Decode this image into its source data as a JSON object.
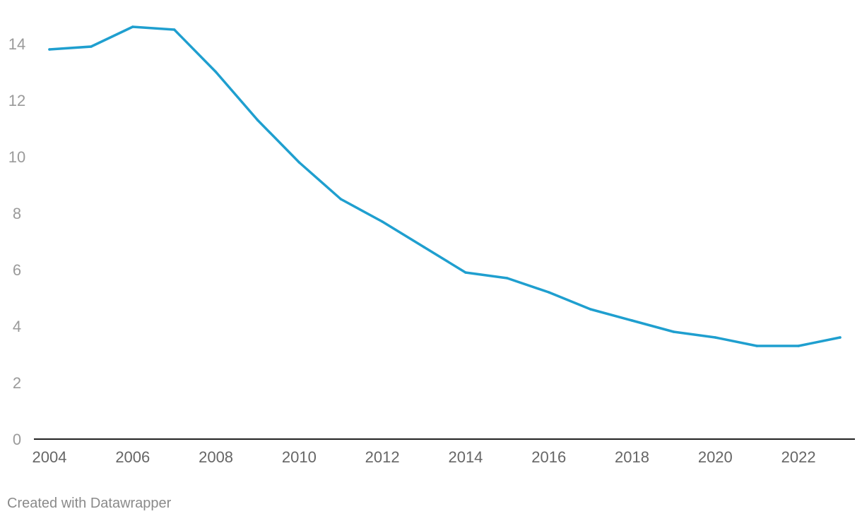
{
  "chart_data": {
    "type": "line",
    "title": "",
    "xlabel": "",
    "ylabel": "",
    "ylim": [
      0,
      15
    ],
    "xlim": [
      2004,
      2023
    ],
    "yticks": [
      0,
      2,
      4,
      6,
      8,
      10,
      12,
      14
    ],
    "xticks": [
      2004,
      2006,
      2008,
      2010,
      2012,
      2014,
      2016,
      2018,
      2020,
      2022
    ],
    "grid": false,
    "legend": "none",
    "x": [
      2004,
      2005,
      2006,
      2007,
      2008,
      2009,
      2010,
      2011,
      2012,
      2013,
      2014,
      2015,
      2016,
      2017,
      2018,
      2019,
      2020,
      2021,
      2022,
      2023
    ],
    "series": [
      {
        "color": "#1f9fcf",
        "values": [
          13.8,
          13.9,
          14.6,
          14.5,
          13.0,
          11.3,
          9.8,
          8.5,
          7.7,
          6.8,
          5.9,
          5.7,
          5.2,
          4.6,
          4.2,
          3.8,
          3.6,
          3.3,
          3.3,
          3.6
        ]
      }
    ]
  },
  "footer": {
    "credit": "Created with Datawrapper"
  }
}
